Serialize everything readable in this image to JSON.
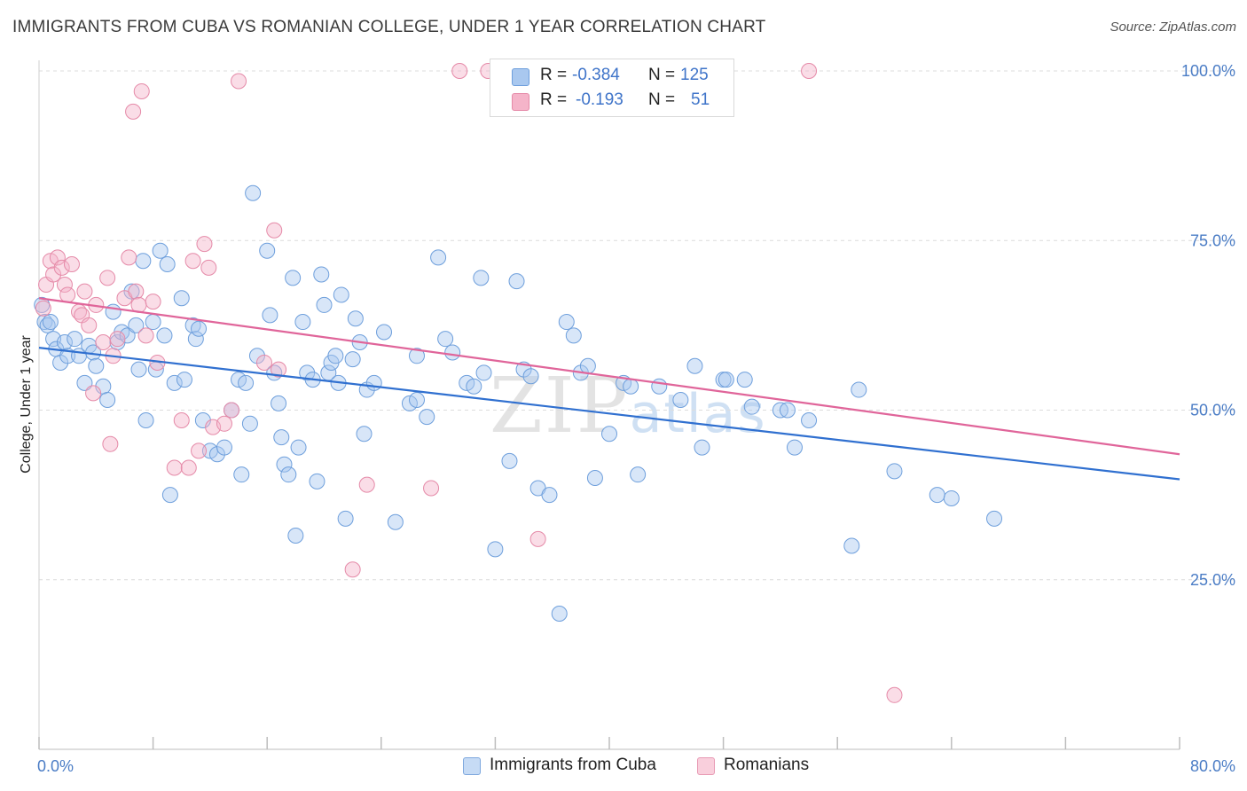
{
  "header": {
    "title": "IMMIGRANTS FROM CUBA VS ROMANIAN COLLEGE, UNDER 1 YEAR CORRELATION CHART",
    "source": "Source: ZipAtlas.com"
  },
  "watermark": {
    "zip": "ZIP",
    "atlas": "atlas"
  },
  "legend": {
    "rows": [
      {
        "r_label": "R =",
        "r_value": "-0.384",
        "n_label": "N =",
        "n_value": "125",
        "color": "#a9c8ef"
      },
      {
        "r_label": "R =",
        "r_value": "-0.193",
        "n_label": "N =",
        "n_value": "51",
        "color": "#f5b4c9"
      }
    ]
  },
  "bottom_legend": {
    "items": [
      {
        "label": "Immigrants from Cuba",
        "color": "#a9c8ef"
      },
      {
        "label": "Romanians",
        "color": "#f5b4c9"
      }
    ]
  },
  "chart_data": {
    "type": "scatter",
    "title": "IMMIGRANTS FROM CUBA VS ROMANIAN COLLEGE, UNDER 1 YEAR CORRELATION CHART",
    "xlabel": "",
    "ylabel": "College, Under 1 year",
    "xlim": [
      0,
      80
    ],
    "ylim": [
      0,
      100
    ],
    "x_ticks": [
      0,
      8,
      16,
      24,
      32,
      40,
      48,
      56,
      64,
      72,
      80
    ],
    "x_tick_labels": {
      "0": "0.0%",
      "80": "80.0%"
    },
    "y_ticks": [
      25,
      50,
      75,
      100
    ],
    "y_tick_labels": [
      "25.0%",
      "50.0%",
      "75.0%",
      "100.0%"
    ],
    "grid": true,
    "legend_position": "top-center",
    "series": [
      {
        "name": "Immigrants from Cuba",
        "color": "#a9c8ef",
        "stroke": "#6e9fdc",
        "line_color": "#3070d0",
        "trend": {
          "x": [
            0,
            80
          ],
          "y": [
            59.2,
            39.8
          ]
        },
        "points": [
          [
            0.2,
            65.5
          ],
          [
            0.4,
            63
          ],
          [
            0.6,
            62.5
          ],
          [
            1,
            60.5
          ],
          [
            1.2,
            59
          ],
          [
            1.5,
            57
          ],
          [
            1.8,
            60
          ],
          [
            2,
            58
          ],
          [
            2.5,
            60.5
          ],
          [
            2.8,
            58
          ],
          [
            3.2,
            54
          ],
          [
            3.5,
            59.5
          ],
          [
            3.8,
            58.5
          ],
          [
            4,
            56.5
          ],
          [
            4.5,
            53.5
          ],
          [
            4.8,
            51.5
          ],
          [
            5.2,
            64.5
          ],
          [
            5.5,
            60
          ],
          [
            5.8,
            61.5
          ],
          [
            6.2,
            61
          ],
          [
            6.5,
            67.5
          ],
          [
            6.8,
            62.5
          ],
          [
            7,
            56
          ],
          [
            7.3,
            72
          ],
          [
            7.5,
            48.5
          ],
          [
            8,
            63
          ],
          [
            8.2,
            56
          ],
          [
            8.5,
            73.5
          ],
          [
            8.8,
            61
          ],
          [
            9.2,
            37.5
          ],
          [
            9.5,
            54
          ],
          [
            10,
            66.5
          ],
          [
            10.2,
            54.5
          ],
          [
            10.8,
            62.5
          ],
          [
            11,
            60.5
          ],
          [
            11.2,
            62
          ],
          [
            11.5,
            48.5
          ],
          [
            12,
            44
          ],
          [
            12.5,
            43.5
          ],
          [
            13,
            44.5
          ],
          [
            13.5,
            50
          ],
          [
            14,
            54.5
          ],
          [
            14.2,
            40.5
          ],
          [
            14.5,
            54
          ],
          [
            14.8,
            48
          ],
          [
            15,
            82
          ],
          [
            15.3,
            58
          ],
          [
            16,
            73.5
          ],
          [
            16.2,
            64
          ],
          [
            16.5,
            55.5
          ],
          [
            16.8,
            51
          ],
          [
            17,
            46
          ],
          [
            17.2,
            42
          ],
          [
            17.5,
            40.5
          ],
          [
            17.8,
            69.5
          ],
          [
            18,
            31.5
          ],
          [
            18.2,
            44.5
          ],
          [
            18.5,
            63
          ],
          [
            18.8,
            55.5
          ],
          [
            19.2,
            54.5
          ],
          [
            19.5,
            39.5
          ],
          [
            19.8,
            70
          ],
          [
            20,
            65.5
          ],
          [
            20.3,
            55.5
          ],
          [
            20.5,
            57
          ],
          [
            20.8,
            58
          ],
          [
            21,
            54
          ],
          [
            21.2,
            67
          ],
          [
            21.5,
            34
          ],
          [
            22,
            57.5
          ],
          [
            22.2,
            63.5
          ],
          [
            22.5,
            60
          ],
          [
            22.8,
            46.5
          ],
          [
            23,
            53
          ],
          [
            23.5,
            54
          ],
          [
            24.2,
            61.5
          ],
          [
            25,
            33.5
          ],
          [
            26,
            51
          ],
          [
            26.5,
            58
          ],
          [
            27.2,
            49
          ],
          [
            28,
            72.5
          ],
          [
            28.5,
            60.5
          ],
          [
            29,
            58.5
          ],
          [
            30,
            54
          ],
          [
            30.5,
            53.5
          ],
          [
            31,
            69.5
          ],
          [
            31.2,
            55.5
          ],
          [
            32,
            29.5
          ],
          [
            33,
            42.5
          ],
          [
            33.5,
            69
          ],
          [
            34,
            56
          ],
          [
            34.5,
            55
          ],
          [
            35,
            38.5
          ],
          [
            35.8,
            37.5
          ],
          [
            36.5,
            20
          ],
          [
            37,
            63
          ],
          [
            37.5,
            61
          ],
          [
            38,
            55.5
          ],
          [
            38.5,
            56.5
          ],
          [
            39,
            40
          ],
          [
            40,
            46.5
          ],
          [
            41,
            54
          ],
          [
            41.5,
            53.5
          ],
          [
            42,
            40.5
          ],
          [
            43.5,
            53.5
          ],
          [
            45,
            51.5
          ],
          [
            46,
            56.5
          ],
          [
            46.5,
            44.5
          ],
          [
            48,
            54.5
          ],
          [
            48.2,
            54.5
          ],
          [
            49.5,
            54.5
          ],
          [
            50,
            50.5
          ],
          [
            52,
            50
          ],
          [
            52.5,
            50
          ],
          [
            53,
            44.5
          ],
          [
            54,
            48.5
          ],
          [
            57,
            30
          ],
          [
            57.5,
            53
          ],
          [
            60,
            41
          ],
          [
            63,
            37.5
          ],
          [
            64,
            37
          ],
          [
            67,
            34
          ],
          [
            0.8,
            63
          ],
          [
            9,
            71.5
          ],
          [
            26.5,
            51.5
          ]
        ]
      },
      {
        "name": "Romanians",
        "color": "#f5b4c9",
        "stroke": "#e58aa8",
        "line_color": "#e0659a",
        "trend": {
          "x": [
            0,
            80
          ],
          "y": [
            66.5,
            43.5
          ]
        },
        "points": [
          [
            0.3,
            65
          ],
          [
            0.5,
            68.5
          ],
          [
            0.8,
            72
          ],
          [
            1,
            70
          ],
          [
            1.3,
            72.5
          ],
          [
            1.6,
            71
          ],
          [
            1.8,
            68.5
          ],
          [
            2,
            67
          ],
          [
            2.3,
            71.5
          ],
          [
            2.8,
            64.5
          ],
          [
            3,
            64
          ],
          [
            3.2,
            67.5
          ],
          [
            3.5,
            62.5
          ],
          [
            3.8,
            52.5
          ],
          [
            4,
            65.5
          ],
          [
            4.5,
            60
          ],
          [
            4.8,
            69.5
          ],
          [
            5,
            45
          ],
          [
            5.2,
            58
          ],
          [
            5.5,
            60.5
          ],
          [
            6,
            66.5
          ],
          [
            6.3,
            72.5
          ],
          [
            6.6,
            94
          ],
          [
            6.8,
            67.5
          ],
          [
            7,
            65.5
          ],
          [
            7.2,
            97
          ],
          [
            7.5,
            61
          ],
          [
            8,
            66
          ],
          [
            8.3,
            57
          ],
          [
            9.5,
            41.5
          ],
          [
            10,
            48.5
          ],
          [
            10.5,
            41.5
          ],
          [
            10.8,
            72
          ],
          [
            11.2,
            44
          ],
          [
            11.6,
            74.5
          ],
          [
            11.9,
            71
          ],
          [
            12.2,
            47.5
          ],
          [
            13.5,
            50
          ],
          [
            14,
            98.5
          ],
          [
            15.8,
            57
          ],
          [
            16.5,
            76.5
          ],
          [
            16.8,
            56
          ],
          [
            22,
            26.5
          ],
          [
            23,
            39
          ],
          [
            27.5,
            38.5
          ],
          [
            29.5,
            100
          ],
          [
            31.5,
            100
          ],
          [
            35,
            31
          ],
          [
            54,
            100
          ],
          [
            60,
            8
          ],
          [
            13,
            48
          ]
        ]
      }
    ]
  }
}
